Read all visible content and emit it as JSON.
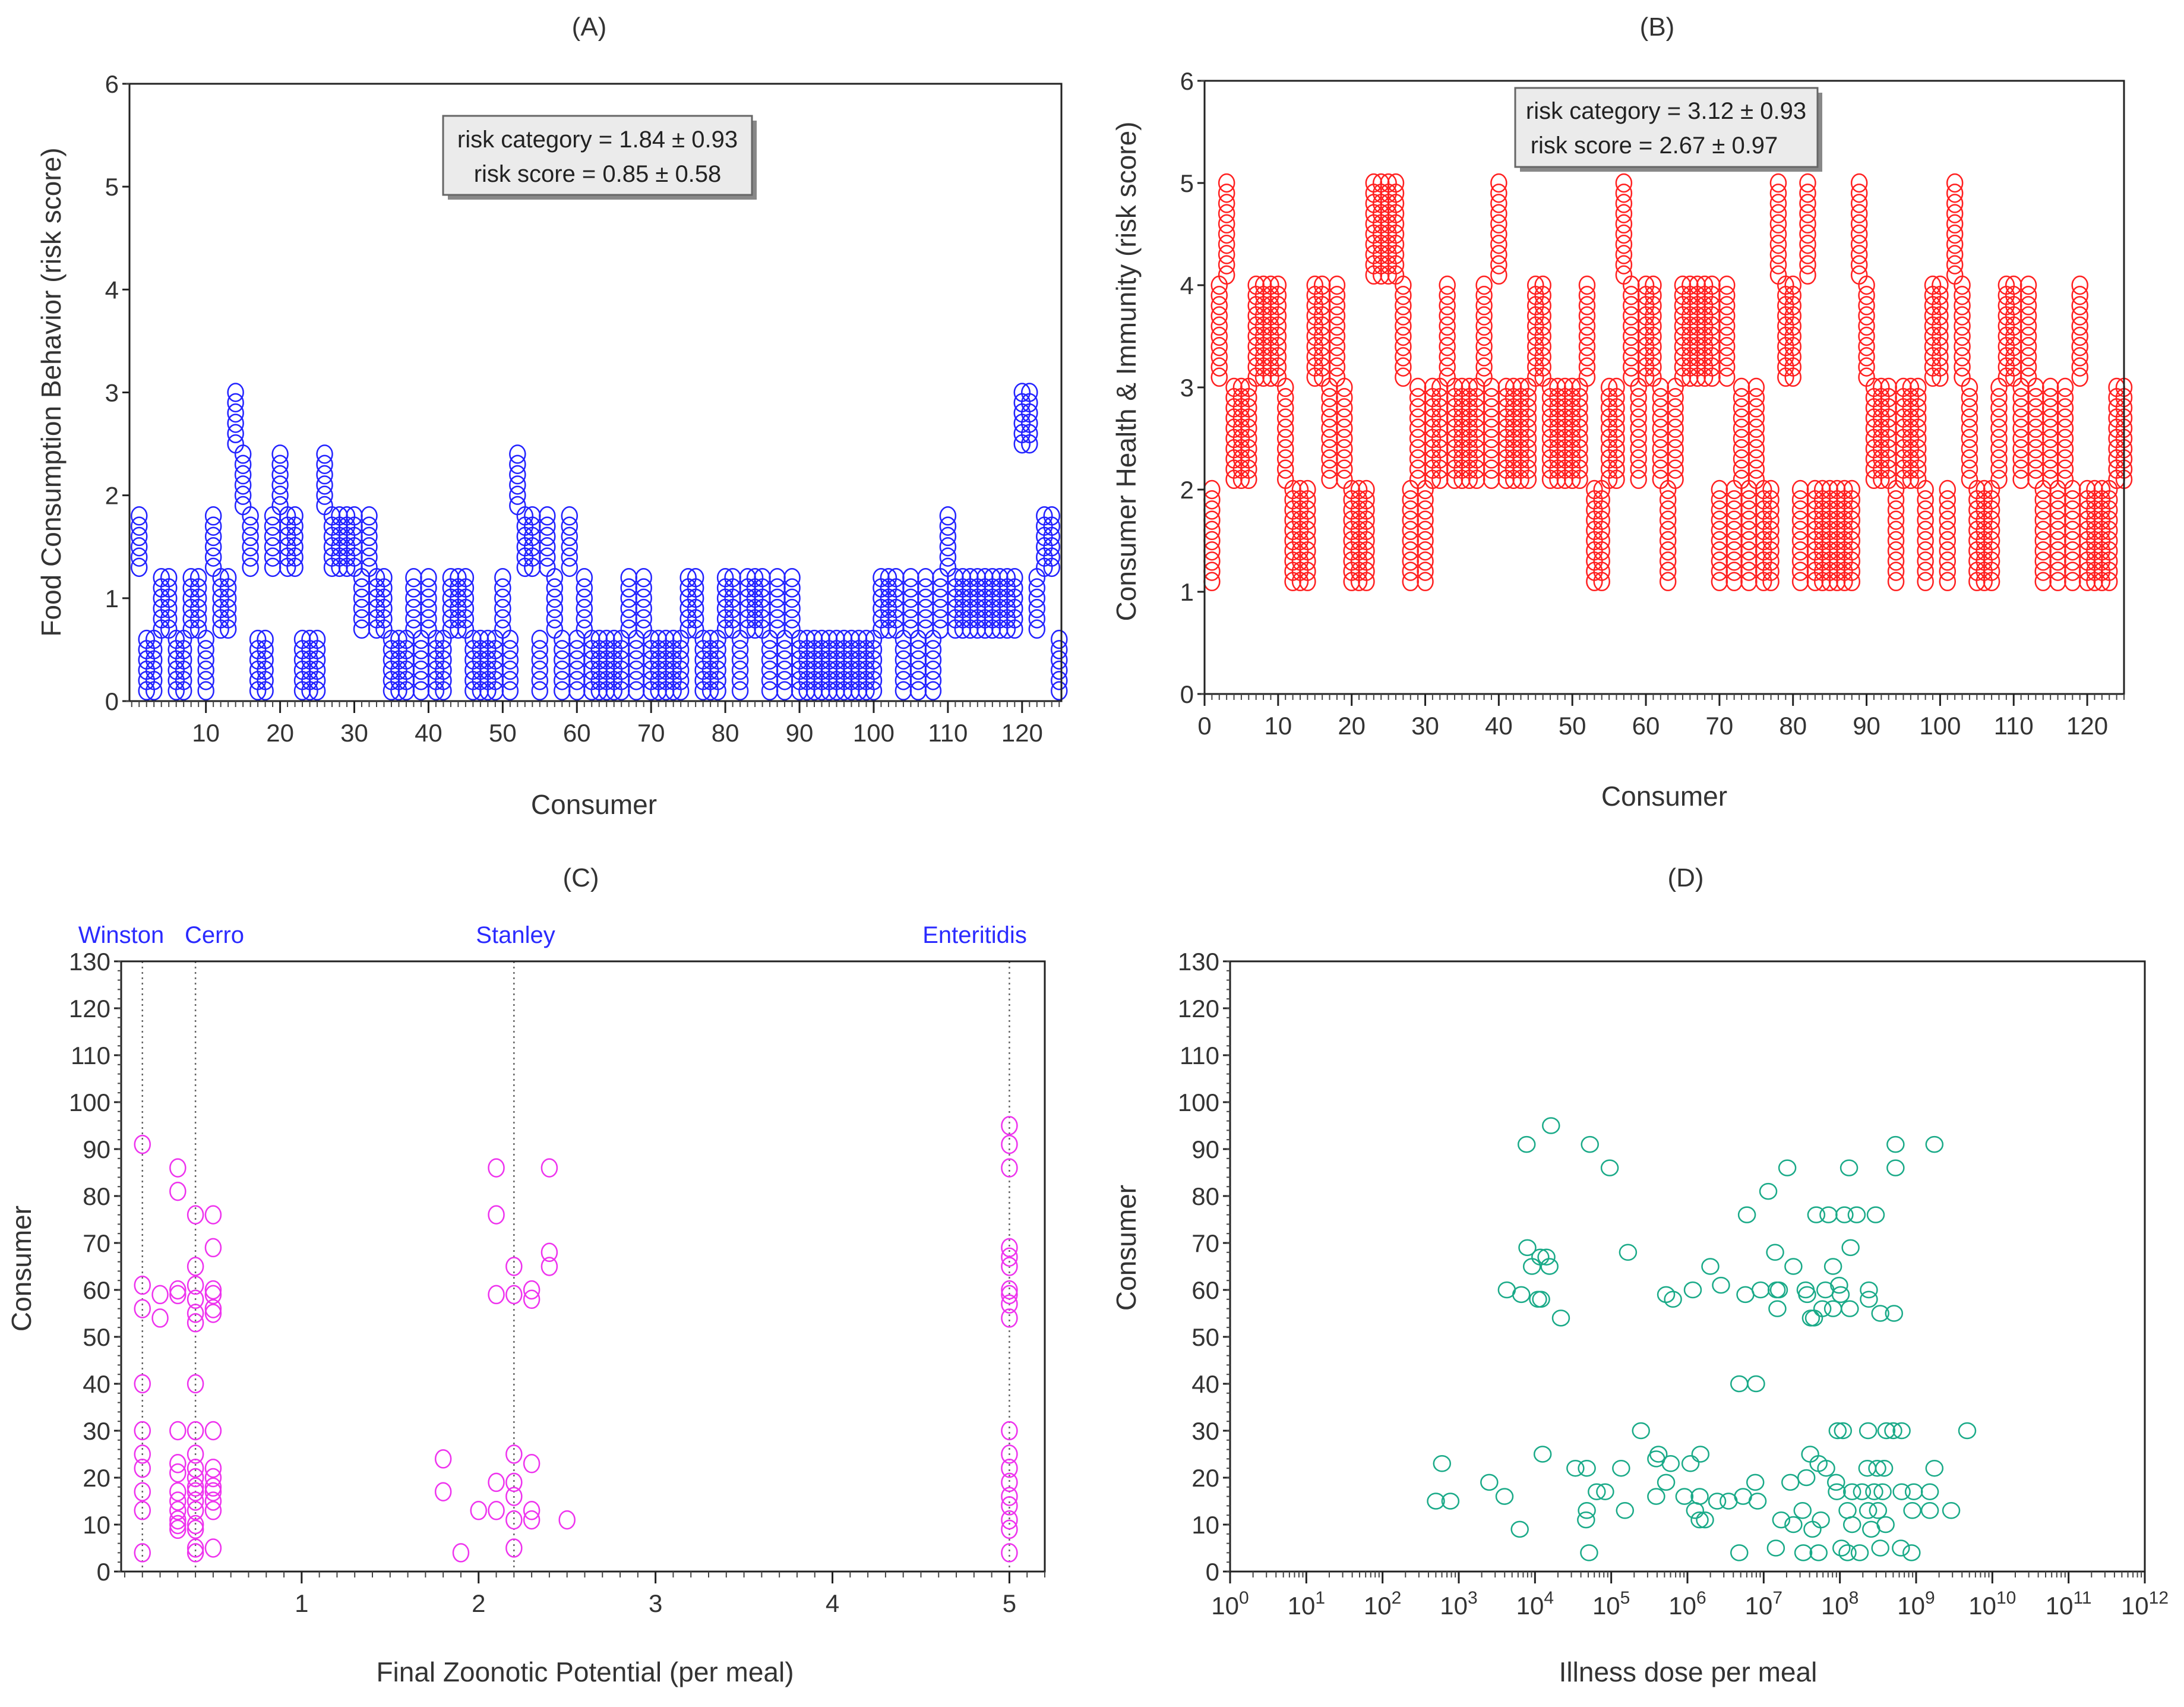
{
  "chart_data": [
    {
      "panel": "(A)",
      "type": "scatter",
      "title": "(A)",
      "xlabel": "Consumer",
      "ylabel": "Food Consumption Behavior (risk score)",
      "xlim": [
        -0.3,
        125.3
      ],
      "ylim": [
        0,
        6
      ],
      "x_ticks": [
        10,
        20,
        30,
        40,
        50,
        60,
        70,
        80,
        90,
        100,
        110,
        120
      ],
      "x_tick_labels": [
        "10",
        "20",
        "30",
        "40",
        "50",
        "60",
        "70",
        "80",
        "90",
        "100",
        "110",
        "120"
      ],
      "y_ticks": [
        0,
        1,
        2,
        3,
        4,
        5,
        6
      ],
      "y_tick_labels": [
        "0",
        "1",
        "2",
        "3",
        "4",
        "5",
        "6"
      ],
      "annotation": [
        "risk category = 1.84 ± 0.93",
        "risk score = 0.85 ± 0.58"
      ],
      "color": "#2222ff",
      "score_step": 0.1,
      "category_ranges": [
        [
          0.1,
          0.6
        ],
        [
          0.7,
          1.2
        ],
        [
          1.3,
          1.8
        ],
        [
          1.9,
          2.4
        ],
        [
          2.5,
          3.0
        ]
      ],
      "category_by_consumer": [
        2,
        0,
        0,
        1,
        1,
        0,
        0,
        1,
        1,
        0,
        2,
        1,
        1,
        4,
        3,
        2,
        0,
        0,
        2,
        3,
        2,
        2,
        0,
        0,
        0,
        3,
        2,
        2,
        2,
        2,
        1,
        2,
        1,
        1,
        0,
        0,
        0,
        1,
        0,
        1,
        0,
        0,
        1,
        1,
        1,
        0,
        0,
        0,
        0,
        1,
        0,
        3,
        2,
        2,
        0,
        2,
        1,
        0,
        2,
        0,
        1,
        0,
        0,
        0,
        0,
        0,
        1,
        0,
        1,
        0,
        0,
        0,
        0,
        0,
        1,
        1,
        0,
        0,
        0,
        1,
        1,
        0,
        1,
        1,
        1,
        0,
        1,
        0,
        1,
        0,
        0,
        0,
        0,
        0,
        0,
        0,
        0,
        0,
        0,
        0,
        1,
        1,
        1,
        0,
        1,
        0,
        1,
        0,
        1,
        2,
        1,
        1,
        1,
        1,
        1,
        1,
        1,
        1,
        1,
        4,
        4,
        1,
        2,
        2,
        0
      ]
    },
    {
      "panel": "(B)",
      "type": "scatter",
      "title": "(B)",
      "xlabel": "Consumer",
      "ylabel": "Consumer  Health & Immunity (risk score)",
      "xlim": [
        0,
        125
      ],
      "ylim": [
        0,
        6
      ],
      "x_ticks": [
        0,
        10,
        20,
        30,
        40,
        50,
        60,
        70,
        80,
        90,
        100,
        110,
        120
      ],
      "x_tick_labels": [
        "0",
        "10",
        "20",
        "30",
        "40",
        "50",
        "60",
        "70",
        "80",
        "90",
        "100",
        "110",
        "120"
      ],
      "y_ticks": [
        0,
        1,
        2,
        3,
        4,
        5,
        6
      ],
      "y_tick_labels": [
        "0",
        "1",
        "2",
        "3",
        "4",
        "5",
        "6"
      ],
      "annotation": [
        "risk category = 3.12 ± 0.93",
        "risk score = 2.67 ± 0.97"
      ],
      "color": "#ff2020",
      "score_step": 0.1,
      "category_ranges": [
        [
          0,
          0
        ],
        [
          1.1,
          2.0
        ],
        [
          2.1,
          3.0
        ],
        [
          3.1,
          4.0
        ],
        [
          4.1,
          5.0
        ]
      ],
      "category_by_consumer": [
        1,
        3,
        4,
        2,
        2,
        2,
        3,
        3,
        3,
        3,
        2,
        1,
        1,
        1,
        3,
        3,
        2,
        3,
        2,
        1,
        1,
        1,
        4,
        4,
        4,
        4,
        3,
        1,
        2,
        1,
        2,
        2,
        3,
        2,
        2,
        2,
        2,
        3,
        2,
        4,
        2,
        2,
        2,
        2,
        3,
        3,
        2,
        2,
        2,
        2,
        2,
        3,
        1,
        1,
        2,
        2,
        4,
        3,
        2,
        3,
        3,
        2,
        1,
        2,
        3,
        3,
        3,
        3,
        3,
        1,
        3,
        1,
        2,
        1,
        2,
        1,
        1,
        4,
        3,
        3,
        1,
        4,
        1,
        1,
        1,
        1,
        1,
        1,
        4,
        3,
        2,
        2,
        2,
        1,
        2,
        2,
        2,
        1,
        3,
        3,
        1,
        4,
        3,
        2,
        1,
        1,
        1,
        2,
        3,
        3,
        2,
        3,
        2,
        1,
        2,
        1,
        2,
        1,
        3,
        1,
        1,
        1,
        1,
        2,
        2
      ]
    },
    {
      "panel": "(C)",
      "type": "scatter",
      "title": "(C)",
      "xlabel": "Final Zoonotic Potential (per meal)",
      "ylabel": "Consumer",
      "xlim": [
        -0.02,
        5.2
      ],
      "ylim": [
        0,
        130
      ],
      "x_ticks": [
        1,
        2,
        3,
        4,
        5
      ],
      "x_tick_labels": [
        "1",
        "2",
        "3",
        "4",
        "5"
      ],
      "y_ticks": [
        0,
        10,
        20,
        30,
        40,
        50,
        60,
        70,
        80,
        90,
        100,
        110,
        120,
        130
      ],
      "y_tick_labels": [
        "0",
        "10",
        "20",
        "30",
        "40",
        "50",
        "60",
        "70",
        "80",
        "90",
        "100",
        "110",
        "120",
        "130"
      ],
      "color": "#ee33ee",
      "reference_lines": [
        {
          "label": "Winston",
          "x": 0.1
        },
        {
          "label": "Cerro",
          "x": 0.4
        },
        {
          "label": "Stanley",
          "x": 2.2
        },
        {
          "label": "Enteritidis",
          "x": 5.0
        }
      ],
      "points": [
        [
          0.1,
          91
        ],
        [
          0.1,
          61
        ],
        [
          0.1,
          56
        ],
        [
          0.1,
          40
        ],
        [
          0.1,
          30
        ],
        [
          0.1,
          25
        ],
        [
          0.1,
          22
        ],
        [
          0.1,
          17
        ],
        [
          0.1,
          13
        ],
        [
          0.1,
          4
        ],
        [
          0.2,
          59
        ],
        [
          0.2,
          54
        ],
        [
          0.3,
          86
        ],
        [
          0.3,
          81
        ],
        [
          0.3,
          60
        ],
        [
          0.3,
          59
        ],
        [
          0.3,
          30
        ],
        [
          0.3,
          23
        ],
        [
          0.3,
          21
        ],
        [
          0.3,
          17
        ],
        [
          0.3,
          15
        ],
        [
          0.3,
          13
        ],
        [
          0.3,
          11
        ],
        [
          0.3,
          10
        ],
        [
          0.3,
          9
        ],
        [
          0.4,
          76
        ],
        [
          0.4,
          65
        ],
        [
          0.4,
          61
        ],
        [
          0.4,
          58
        ],
        [
          0.4,
          55
        ],
        [
          0.4,
          53
        ],
        [
          0.4,
          40
        ],
        [
          0.4,
          30
        ],
        [
          0.4,
          25
        ],
        [
          0.4,
          22
        ],
        [
          0.4,
          20
        ],
        [
          0.4,
          18
        ],
        [
          0.4,
          17
        ],
        [
          0.4,
          15
        ],
        [
          0.4,
          13
        ],
        [
          0.4,
          10
        ],
        [
          0.4,
          9
        ],
        [
          0.4,
          5
        ],
        [
          0.4,
          4
        ],
        [
          0.5,
          76
        ],
        [
          0.5,
          69
        ],
        [
          0.5,
          60
        ],
        [
          0.5,
          59
        ],
        [
          0.5,
          56
        ],
        [
          0.5,
          55
        ],
        [
          0.5,
          30
        ],
        [
          0.5,
          22
        ],
        [
          0.5,
          20
        ],
        [
          0.5,
          18
        ],
        [
          0.5,
          17
        ],
        [
          0.5,
          15
        ],
        [
          0.5,
          13
        ],
        [
          0.5,
          5
        ],
        [
          1.8,
          24
        ],
        [
          1.8,
          17
        ],
        [
          1.9,
          4
        ],
        [
          2.0,
          13
        ],
        [
          2.1,
          86
        ],
        [
          2.1,
          76
        ],
        [
          2.1,
          59
        ],
        [
          2.1,
          19
        ],
        [
          2.1,
          13
        ],
        [
          2.2,
          65
        ],
        [
          2.2,
          59
        ],
        [
          2.2,
          25
        ],
        [
          2.2,
          19
        ],
        [
          2.2,
          16
        ],
        [
          2.2,
          11
        ],
        [
          2.2,
          5
        ],
        [
          2.3,
          60
        ],
        [
          2.3,
          58
        ],
        [
          2.3,
          23
        ],
        [
          2.3,
          13
        ],
        [
          2.3,
          11
        ],
        [
          2.4,
          86
        ],
        [
          2.4,
          68
        ],
        [
          2.4,
          65
        ],
        [
          2.5,
          11
        ],
        [
          5,
          95
        ],
        [
          5,
          91
        ],
        [
          5,
          86
        ],
        [
          5,
          69
        ],
        [
          5,
          67
        ],
        [
          5,
          65
        ],
        [
          5,
          60
        ],
        [
          5,
          59
        ],
        [
          5,
          57
        ],
        [
          5,
          54
        ],
        [
          5,
          30
        ],
        [
          5,
          25
        ],
        [
          5,
          22
        ],
        [
          5,
          19
        ],
        [
          5,
          16
        ],
        [
          5,
          14
        ],
        [
          5,
          11
        ],
        [
          5,
          9
        ],
        [
          5,
          4
        ]
      ]
    },
    {
      "panel": "(D)",
      "type": "scatter",
      "title": "(D)",
      "xlabel": "Illness dose per meal",
      "ylabel": "Consumer",
      "xscale": "log10",
      "xlim_log10": [
        0,
        12
      ],
      "ylim": [
        0,
        130
      ],
      "x_tick_base": "10",
      "x_tick_exponents": [
        "0",
        "1",
        "2",
        "3",
        "4",
        "5",
        "6",
        "7",
        "8",
        "9",
        "10",
        "11",
        "12"
      ],
      "y_ticks": [
        0,
        10,
        20,
        30,
        40,
        50,
        60,
        70,
        80,
        90,
        100,
        110,
        120,
        130
      ],
      "y_tick_labels": [
        "0",
        "10",
        "20",
        "30",
        "40",
        "50",
        "60",
        "70",
        "80",
        "90",
        "100",
        "110",
        "120",
        "130"
      ],
      "color": "#1aaa88",
      "points_log10x": [
        [
          4.21,
          95
        ],
        [
          3.89,
          91
        ],
        [
          4.72,
          91
        ],
        [
          4.98,
          86
        ],
        [
          7.31,
          86
        ],
        [
          8.12,
          86
        ],
        [
          8.73,
          86
        ],
        [
          8.73,
          91
        ],
        [
          9.24,
          91
        ],
        [
          7.06,
          81
        ],
        [
          6.78,
          76
        ],
        [
          7.69,
          76
        ],
        [
          7.85,
          76
        ],
        [
          8.06,
          76
        ],
        [
          8.22,
          76
        ],
        [
          8.47,
          76
        ],
        [
          3.9,
          69
        ],
        [
          8.14,
          69
        ],
        [
          5.22,
          68
        ],
        [
          7.15,
          68
        ],
        [
          4.07,
          67
        ],
        [
          4.15,
          67
        ],
        [
          3.96,
          65
        ],
        [
          4.19,
          65
        ],
        [
          6.3,
          65
        ],
        [
          7.39,
          65
        ],
        [
          7.91,
          65
        ],
        [
          3.63,
          60
        ],
        [
          3.82,
          59
        ],
        [
          4.04,
          58
        ],
        [
          4.08,
          58
        ],
        [
          4.34,
          54
        ],
        [
          5.72,
          59
        ],
        [
          5.81,
          58
        ],
        [
          6.07,
          60
        ],
        [
          6.44,
          61
        ],
        [
          6.76,
          59
        ],
        [
          6.96,
          60
        ],
        [
          7.17,
          60
        ],
        [
          7.2,
          60
        ],
        [
          7.18,
          56
        ],
        [
          7.55,
          60
        ],
        [
          7.57,
          59
        ],
        [
          7.62,
          54
        ],
        [
          7.66,
          54
        ],
        [
          7.77,
          56
        ],
        [
          7.81,
          60
        ],
        [
          7.91,
          56
        ],
        [
          7.99,
          61
        ],
        [
          8.01,
          59
        ],
        [
          8.13,
          56
        ],
        [
          8.38,
          60
        ],
        [
          8.38,
          58
        ],
        [
          8.53,
          55
        ],
        [
          8.71,
          55
        ],
        [
          6.68,
          40
        ],
        [
          6.9,
          40
        ],
        [
          5.39,
          30
        ],
        [
          7.97,
          30
        ],
        [
          8.04,
          30
        ],
        [
          8.37,
          30
        ],
        [
          8.61,
          30
        ],
        [
          8.7,
          30
        ],
        [
          8.81,
          30
        ],
        [
          9.67,
          30
        ],
        [
          4.1,
          25
        ],
        [
          5.62,
          25
        ],
        [
          6.17,
          25
        ],
        [
          7.61,
          25
        ],
        [
          2.78,
          23
        ],
        [
          4.53,
          22
        ],
        [
          4.68,
          22
        ],
        [
          5.13,
          22
        ],
        [
          5.59,
          24
        ],
        [
          5.78,
          23
        ],
        [
          6.04,
          23
        ],
        [
          7.72,
          23
        ],
        [
          7.82,
          22
        ],
        [
          8.36,
          22
        ],
        [
          8.49,
          22
        ],
        [
          8.58,
          22
        ],
        [
          9.24,
          22
        ],
        [
          3.4,
          19
        ],
        [
          5.72,
          19
        ],
        [
          6.89,
          19
        ],
        [
          7.35,
          19
        ],
        [
          7.56,
          20
        ],
        [
          7.95,
          19
        ],
        [
          3.6,
          16
        ],
        [
          2.7,
          15
        ],
        [
          2.89,
          15
        ],
        [
          4.81,
          17
        ],
        [
          4.92,
          17
        ],
        [
          5.59,
          16
        ],
        [
          5.96,
          16
        ],
        [
          6.16,
          16
        ],
        [
          6.39,
          15
        ],
        [
          6.54,
          15
        ],
        [
          6.73,
          16
        ],
        [
          6.92,
          15
        ],
        [
          7.96,
          17
        ],
        [
          8.16,
          17
        ],
        [
          8.29,
          17
        ],
        [
          8.45,
          17
        ],
        [
          8.56,
          17
        ],
        [
          8.81,
          17
        ],
        [
          8.97,
          17
        ],
        [
          9.18,
          17
        ],
        [
          4.68,
          13
        ],
        [
          5.18,
          13
        ],
        [
          6.1,
          13
        ],
        [
          7.51,
          13
        ],
        [
          8.1,
          13
        ],
        [
          8.37,
          13
        ],
        [
          8.5,
          13
        ],
        [
          8.95,
          13
        ],
        [
          9.18,
          13
        ],
        [
          9.46,
          13
        ],
        [
          4.67,
          11
        ],
        [
          6.16,
          11
        ],
        [
          6.23,
          11
        ],
        [
          7.23,
          11
        ],
        [
          7.39,
          10
        ],
        [
          7.64,
          9
        ],
        [
          7.75,
          11
        ],
        [
          8.16,
          10
        ],
        [
          8.41,
          9
        ],
        [
          8.6,
          10
        ],
        [
          3.8,
          9
        ],
        [
          4.71,
          4
        ],
        [
          6.68,
          4
        ],
        [
          7.16,
          5
        ],
        [
          7.52,
          4
        ],
        [
          7.72,
          4
        ],
        [
          8.02,
          5
        ],
        [
          8.1,
          4
        ],
        [
          8.26,
          4
        ],
        [
          8.53,
          5
        ],
        [
          8.8,
          5
        ],
        [
          8.94,
          4
        ]
      ]
    }
  ]
}
